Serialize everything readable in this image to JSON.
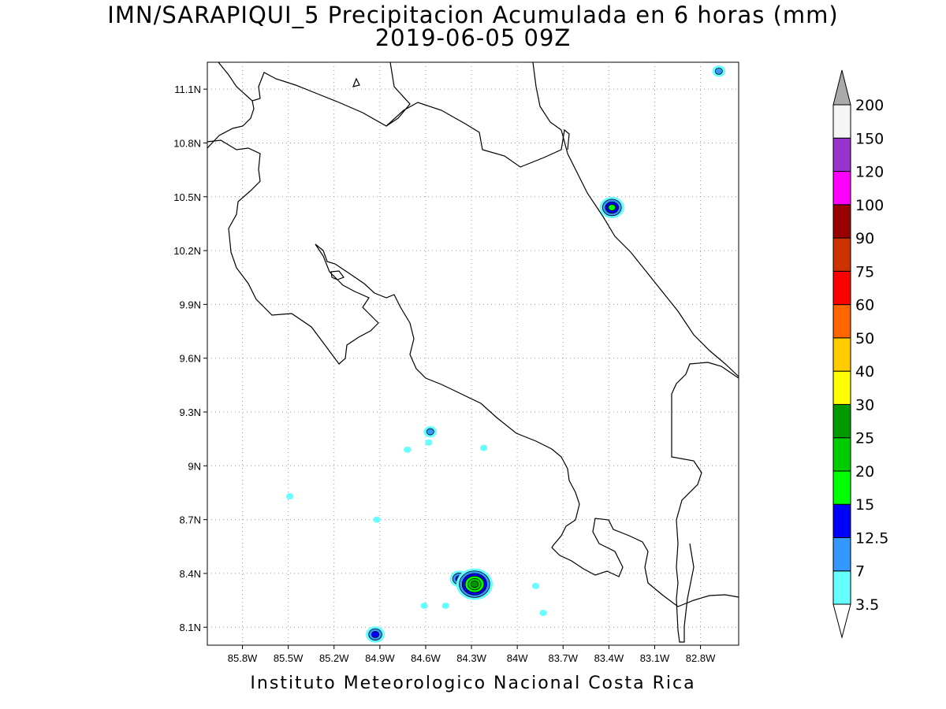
{
  "title": {
    "line1": "IMN/SARAPIQUI_5 Precipitacion Acumulada en 6 horas (mm)",
    "line2": "2019-06-05 09Z"
  },
  "footer": "Instituto Meteorologico Nacional Costa Rica",
  "map": {
    "lon_range": [
      -86.03,
      -82.55
    ],
    "lat_range": [
      8.0,
      11.25
    ],
    "lon_ticks": [
      {
        "v": -85.8,
        "label": "85.8W"
      },
      {
        "v": -85.5,
        "label": "85.5W"
      },
      {
        "v": -85.2,
        "label": "85.2W"
      },
      {
        "v": -84.9,
        "label": "84.9W"
      },
      {
        "v": -84.6,
        "label": "84.6W"
      },
      {
        "v": -84.3,
        "label": "84.3W"
      },
      {
        "v": -84.0,
        "label": "84W"
      },
      {
        "v": -83.7,
        "label": "83.7W"
      },
      {
        "v": -83.4,
        "label": "83.4W"
      },
      {
        "v": -83.1,
        "label": "83.1W"
      },
      {
        "v": -82.8,
        "label": "82.8W"
      }
    ],
    "lat_ticks": [
      {
        "v": 11.1,
        "label": "11.1N"
      },
      {
        "v": 10.8,
        "label": "10.8N"
      },
      {
        "v": 10.5,
        "label": "10.5N"
      },
      {
        "v": 10.2,
        "label": "10.2N"
      },
      {
        "v": 9.9,
        "label": "9.9N"
      },
      {
        "v": 9.6,
        "label": "9.6N"
      },
      {
        "v": 9.3,
        "label": "9.3N"
      },
      {
        "v": 9.0,
        "label": "9N"
      },
      {
        "v": 8.7,
        "label": "8.7N"
      },
      {
        "v": 8.4,
        "label": "8.4N"
      },
      {
        "v": 8.1,
        "label": "8.1N"
      }
    ],
    "grid": "dotted"
  },
  "colorbar": {
    "levels": [
      "3.5",
      "7",
      "12.5",
      "15",
      "20",
      "25",
      "30",
      "40",
      "50",
      "60",
      "75",
      "90",
      "100",
      "120",
      "150",
      "200"
    ],
    "colors": [
      "#66ffff",
      "#3399ff",
      "#0000ff",
      "#00ff00",
      "#00cc00",
      "#009900",
      "#ffff00",
      "#ffcc00",
      "#ff6600",
      "#ff0000",
      "#cc3300",
      "#990000",
      "#ff00ff",
      "#9933cc",
      "#f5f5f5",
      "#aaaaaa"
    ]
  },
  "precip_cells": [
    {
      "lon": -83.38,
      "lat": 10.44,
      "level": 3
    },
    {
      "lon": -82.68,
      "lat": 11.2,
      "level": 1
    },
    {
      "lon": -84.57,
      "lat": 9.19,
      "level": 1
    },
    {
      "lon": -84.58,
      "lat": 9.13,
      "level": 0
    },
    {
      "lon": -84.72,
      "lat": 9.09,
      "level": 0
    },
    {
      "lon": -84.22,
      "lat": 9.1,
      "level": 0
    },
    {
      "lon": -85.49,
      "lat": 8.83,
      "level": 0
    },
    {
      "lon": -84.92,
      "lat": 8.7,
      "level": 0
    },
    {
      "lon": -84.38,
      "lat": 8.37,
      "level": 2
    },
    {
      "lon": -84.28,
      "lat": 8.34,
      "level": 5
    },
    {
      "lon": -84.47,
      "lat": 8.22,
      "level": 0
    },
    {
      "lon": -84.61,
      "lat": 8.22,
      "level": 0
    },
    {
      "lon": -84.93,
      "lat": 8.06,
      "level": 2
    },
    {
      "lon": -83.83,
      "lat": 8.18,
      "level": 0
    },
    {
      "lon": -83.88,
      "lat": 8.33,
      "level": 0
    }
  ]
}
